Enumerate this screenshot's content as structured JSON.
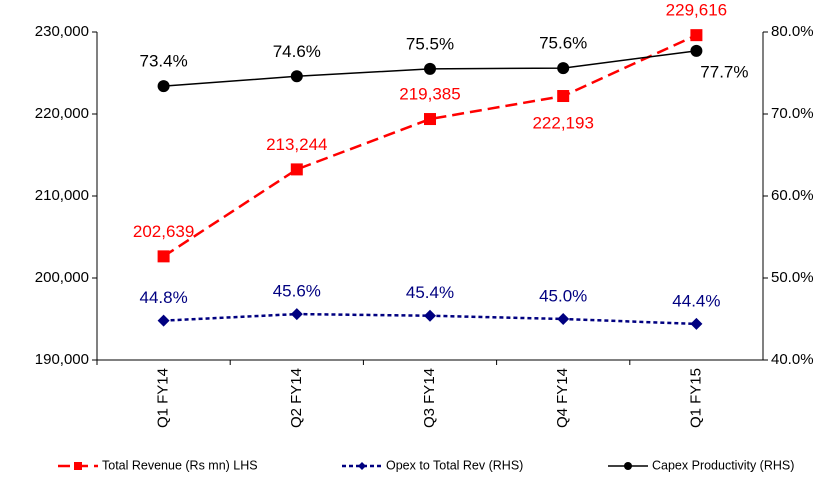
{
  "chart_data": {
    "type": "line",
    "categories": [
      "Q1 FY14",
      "Q2 FY14",
      "Q3 FY14",
      "Q4 FY14",
      "Q1 FY15"
    ],
    "ylim": [
      190000,
      230000
    ],
    "yticks": [
      {
        "value": 190000,
        "label": "190,000"
      },
      {
        "value": 200000,
        "label": "200,000"
      },
      {
        "value": 210000,
        "label": "210,000"
      },
      {
        "value": 220000,
        "label": "220,000"
      },
      {
        "value": 230000,
        "label": "230,000"
      }
    ],
    "y2lim": [
      40,
      80
    ],
    "y2ticks": [
      {
        "value": 40,
        "label": "40.0%"
      },
      {
        "value": 50,
        "label": "50.0%"
      },
      {
        "value": 60,
        "label": "60.0%"
      },
      {
        "value": 70,
        "label": "70.0%"
      },
      {
        "value": 80,
        "label": "80.0%"
      }
    ],
    "legend": "bottom",
    "series": [
      {
        "name": "Total Revenue (Rs mn) LHS",
        "color": "#ff0000",
        "axis": "y",
        "dash": "dashed",
        "marker": "square",
        "values": [
          202639,
          213244,
          219385,
          222193,
          229616
        ],
        "value_labels": [
          "202,639",
          "213,244",
          "219,385",
          "222,193",
          "229,616"
        ]
      },
      {
        "name": "Opex to Total Rev (RHS)",
        "color": "#000080",
        "axis": "y2",
        "dash": "dotted",
        "marker": "diamond",
        "values": [
          44.8,
          45.6,
          45.4,
          45.0,
          44.4
        ],
        "value_labels": [
          "44.8%",
          "45.6%",
          "45.4%",
          "45.0%",
          "44.4%"
        ]
      },
      {
        "name": "Capex Productivity (RHS)",
        "color": "#000000",
        "axis": "y2",
        "dash": "solid",
        "marker": "circle",
        "values": [
          73.4,
          74.6,
          75.5,
          75.6,
          77.7
        ],
        "value_labels": [
          "73.4%",
          "74.6%",
          "75.5%",
          "75.6%",
          "77.7%"
        ]
      }
    ]
  }
}
